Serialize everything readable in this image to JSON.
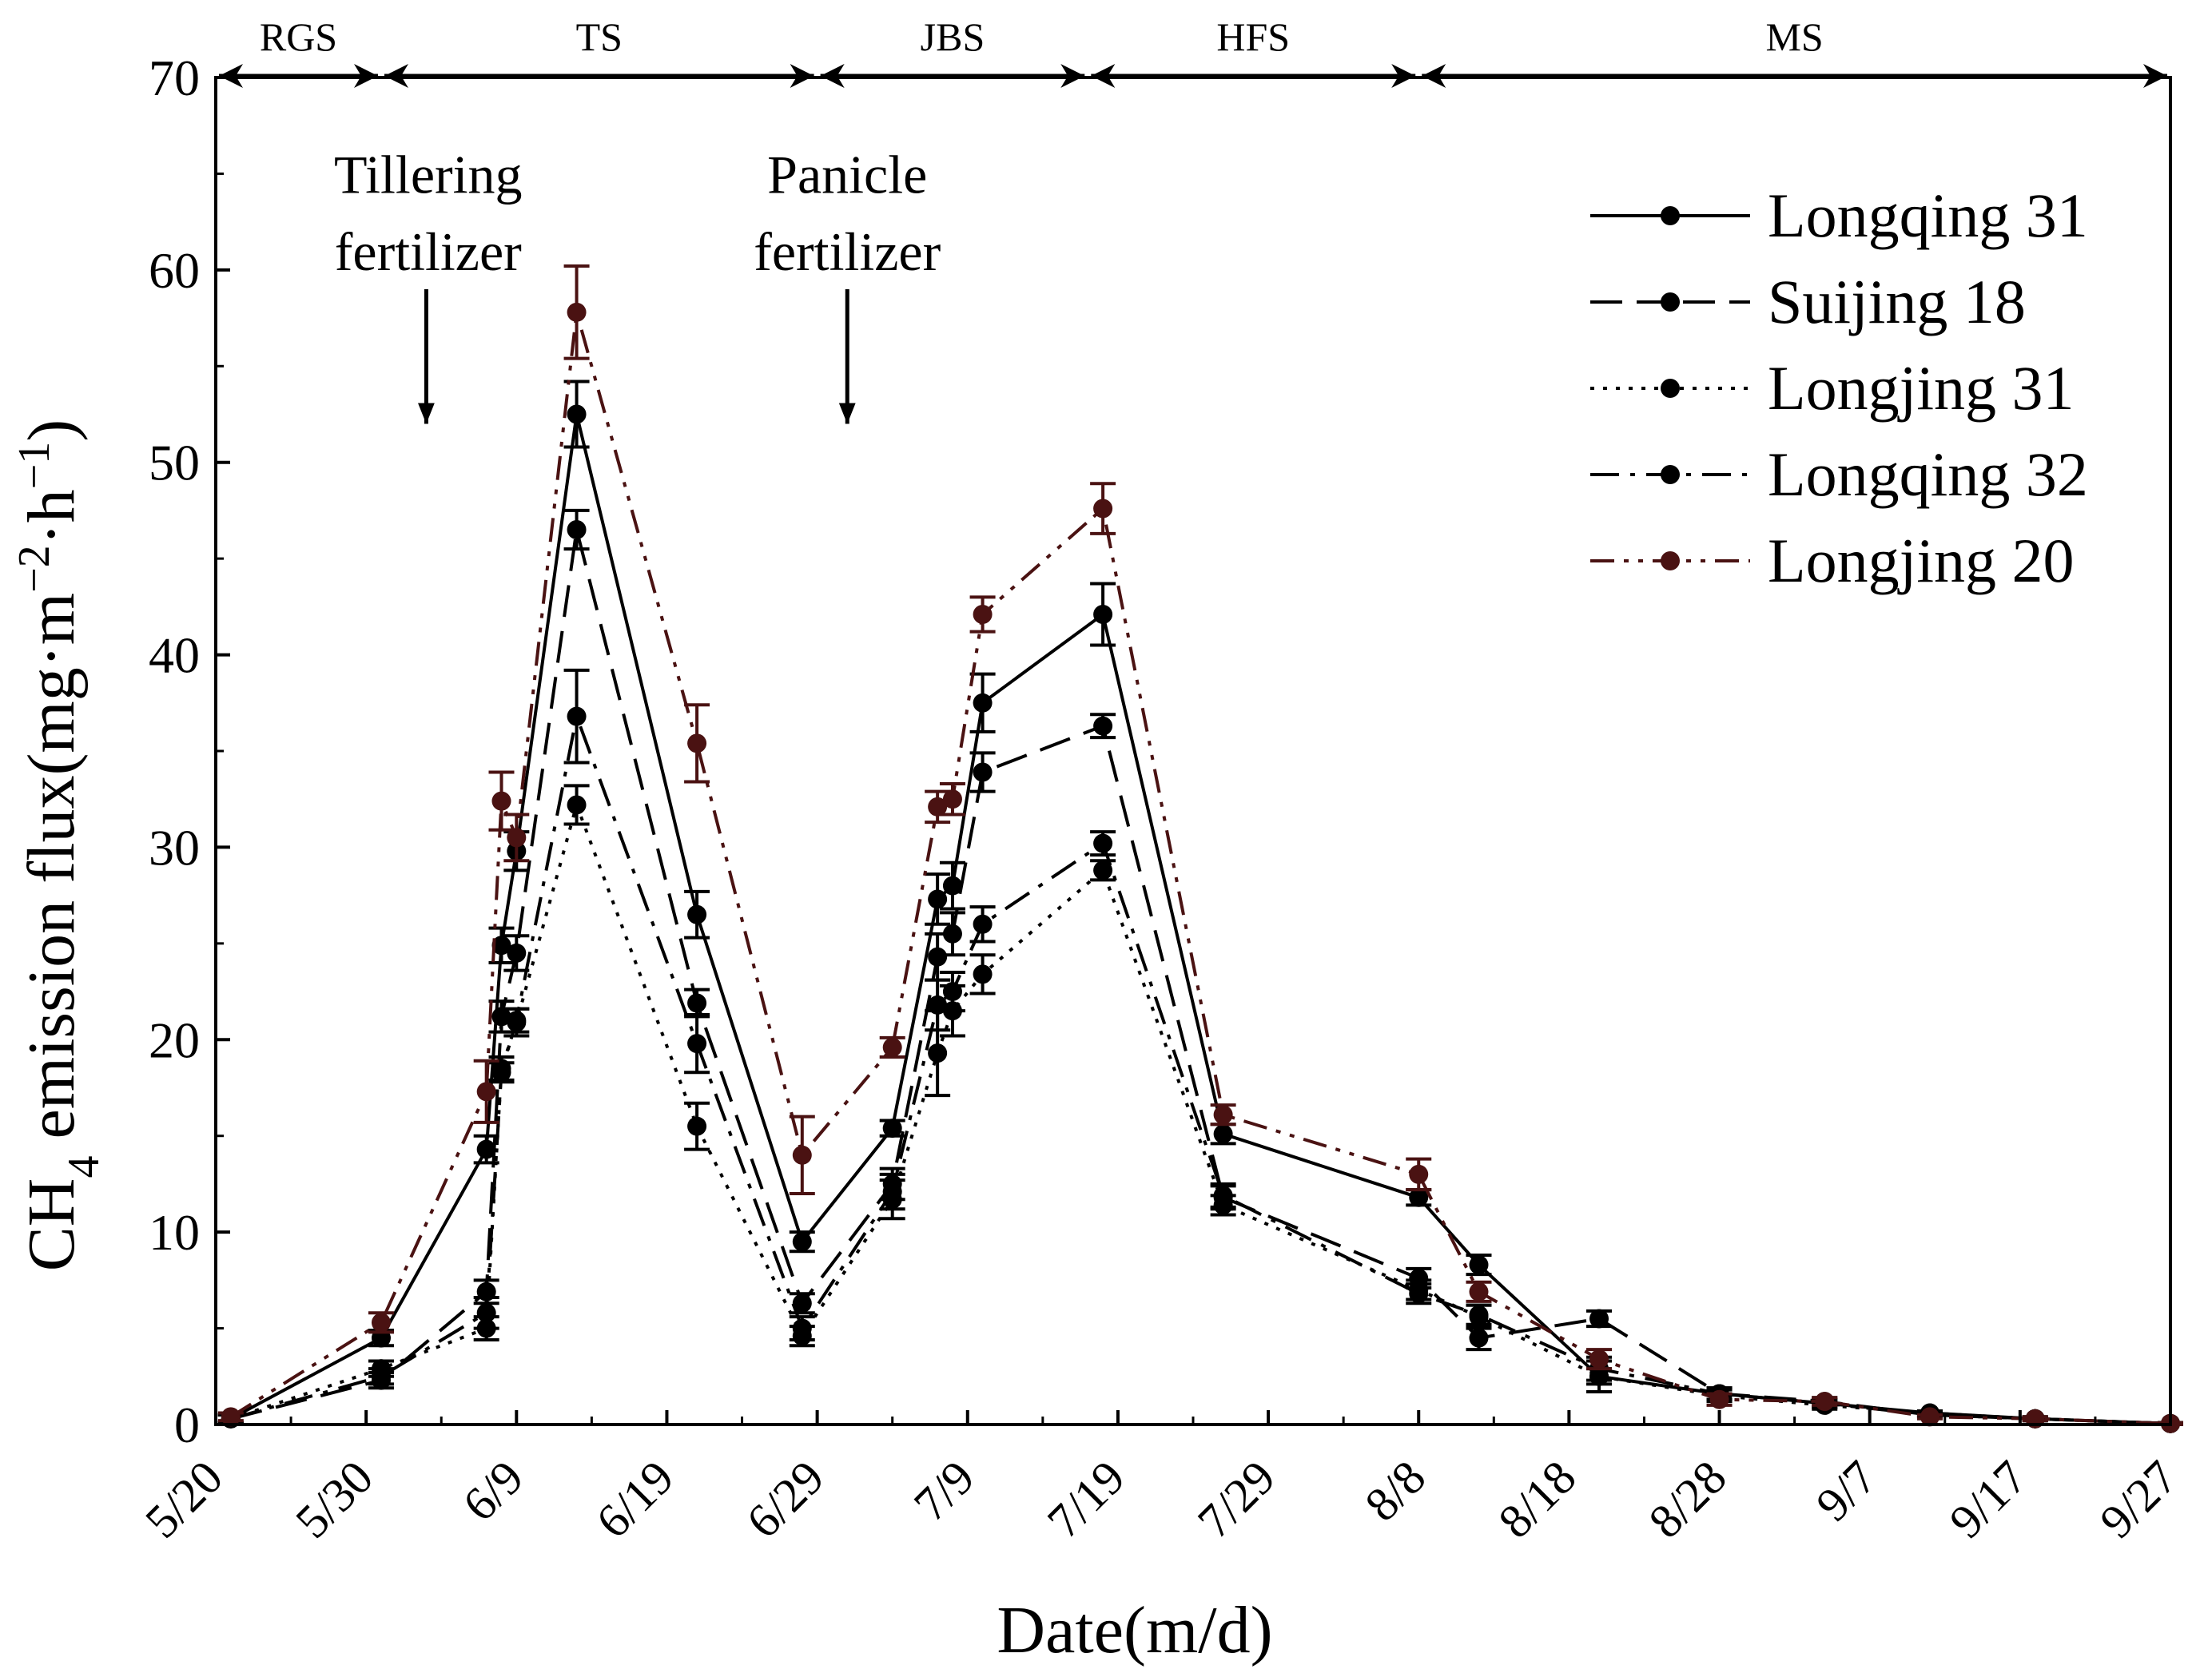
{
  "chart_data": {
    "type": "line",
    "xlabel": "Date(m/d)",
    "ylabel": "CH4 emission flux(mg·m−2·h−1)",
    "ylabel_parts": {
      "p1": "CH",
      "sub": "4",
      "p2": " emission flux(mg·m",
      "sup1": "−2",
      "p3": "·h",
      "sup2": "−1",
      "p4": ")"
    },
    "xlim": [
      "5/20",
      "9/27"
    ],
    "ylim": [
      0,
      70
    ],
    "x_ticks": [
      "5/20",
      "5/30",
      "6/9",
      "6/19",
      "6/29",
      "7/9",
      "7/19",
      "7/29",
      "8/8",
      "8/18",
      "8/28",
      "9/7",
      "9/17",
      "9/27"
    ],
    "y_ticks": [
      0,
      10,
      20,
      30,
      40,
      50,
      60,
      70
    ],
    "grid": false,
    "legend_position": "top-right",
    "x": [
      "5/21",
      "5/31",
      "6/7",
      "6/8",
      "6/9",
      "6/13",
      "6/21",
      "6/28",
      "7/4",
      "7/7",
      "7/8",
      "7/10",
      "7/18",
      "7/26",
      "8/8",
      "8/12",
      "8/20",
      "8/28",
      "9/4",
      "9/11",
      "9/18",
      "9/27"
    ],
    "series": [
      {
        "name": "Longqing 31",
        "color": "#000000",
        "dash": "solid",
        "values": [
          0.3,
          4.5,
          14.3,
          24.9,
          29.8,
          52.5,
          26.5,
          9.5,
          15.4,
          27.3,
          28.0,
          37.5,
          42.1,
          15.1,
          11.8,
          8.3,
          2.5,
          1.6,
          1.1,
          0.6,
          0.3,
          0.05
        ],
        "errors": [
          0.2,
          0.4,
          0.7,
          0.9,
          1.0,
          1.7,
          1.2,
          0.5,
          0.4,
          1.3,
          1.2,
          1.5,
          1.6,
          0.5,
          0.4,
          0.5,
          0.4,
          0.3,
          0.2,
          0.1,
          0.1,
          0.05
        ]
      },
      {
        "name": "Suijing 18",
        "color": "#000000",
        "dash": "dashed",
        "values": [
          0.3,
          2.3,
          6.9,
          21.2,
          24.5,
          46.5,
          21.9,
          6.3,
          12.5,
          24.3,
          25.5,
          33.9,
          36.3,
          11.8,
          7.6,
          4.5,
          5.5,
          1.6,
          1.2,
          0.5,
          0.3,
          0.05
        ],
        "errors": [
          0.2,
          0.4,
          0.6,
          0.8,
          0.9,
          1.0,
          0.7,
          0.5,
          0.8,
          1.2,
          1.1,
          1.0,
          0.6,
          0.6,
          0.5,
          0.6,
          0.4,
          0.3,
          0.2,
          0.1,
          0.1,
          0.05
        ]
      },
      {
        "name": "Longjing 31",
        "color": "#000000",
        "dash": "dotted",
        "values": [
          0.3,
          2.9,
          5.0,
          18.5,
          20.9,
          32.2,
          15.5,
          4.6,
          11.7,
          19.3,
          21.5,
          23.4,
          28.8,
          11.4,
          7.0,
          5.6,
          2.5,
          1.5,
          1.0,
          0.6,
          0.3,
          0.05
        ],
        "errors": [
          0.2,
          0.4,
          0.6,
          0.6,
          0.7,
          1.0,
          1.2,
          0.5,
          1.0,
          2.2,
          1.3,
          1.0,
          0.5,
          0.5,
          0.5,
          0.6,
          0.8,
          0.3,
          0.2,
          0.1,
          0.1,
          0.05
        ]
      },
      {
        "name": "Longqing 32",
        "color": "#000000",
        "dash": "dashdot",
        "values": [
          0.3,
          2.5,
          5.8,
          18.3,
          21.0,
          36.8,
          19.8,
          5.0,
          12.1,
          21.8,
          22.5,
          26.0,
          30.2,
          11.9,
          6.8,
          5.7,
          2.9,
          1.6,
          1.1,
          0.5,
          0.3,
          0.05
        ],
        "errors": [
          0.2,
          0.4,
          0.8,
          0.5,
          0.6,
          2.4,
          1.5,
          0.6,
          0.9,
          1.3,
          1.0,
          0.9,
          0.6,
          0.6,
          0.5,
          0.5,
          0.6,
          0.3,
          0.2,
          0.1,
          0.1,
          0.05
        ]
      },
      {
        "name": "Longjing 20",
        "color": "#4a1212",
        "dash": "dashdotdot",
        "values": [
          0.4,
          5.3,
          17.3,
          32.4,
          30.5,
          57.8,
          35.4,
          14.0,
          19.6,
          32.1,
          32.5,
          42.1,
          47.6,
          16.1,
          13.0,
          6.9,
          3.4,
          1.3,
          1.2,
          0.4,
          0.3,
          0.05
        ],
        "errors": [
          0.2,
          0.5,
          1.6,
          1.5,
          1.2,
          2.4,
          2.0,
          2.0,
          0.5,
          0.8,
          0.8,
          0.9,
          1.3,
          0.5,
          0.8,
          0.5,
          0.5,
          0.3,
          0.2,
          0.1,
          0.1,
          0.05
        ]
      }
    ],
    "stages": [
      {
        "label": "RGS",
        "start": "5/20",
        "end": "5/31"
      },
      {
        "label": "TS",
        "start": "5/31",
        "end": "6/29"
      },
      {
        "label": "JBS",
        "start": "6/29",
        "end": "7/17"
      },
      {
        "label": "HFS",
        "start": "7/17",
        "end": "8/8"
      },
      {
        "label": "MS",
        "start": "8/8",
        "end": "9/27"
      }
    ],
    "annotations": [
      {
        "lines": [
          "Tillering",
          "fertilizer"
        ],
        "arrow_x": "6/3",
        "arrow_y": [
          59,
          52
        ],
        "text_x": "6/1",
        "text_y": [
          65,
          61
        ]
      },
      {
        "lines": [
          "Panicle",
          "fertilizer"
        ],
        "arrow_x": "7/1",
        "arrow_y": [
          59,
          52
        ],
        "text_x": "7/1",
        "text_y": [
          65,
          61
        ]
      }
    ]
  }
}
